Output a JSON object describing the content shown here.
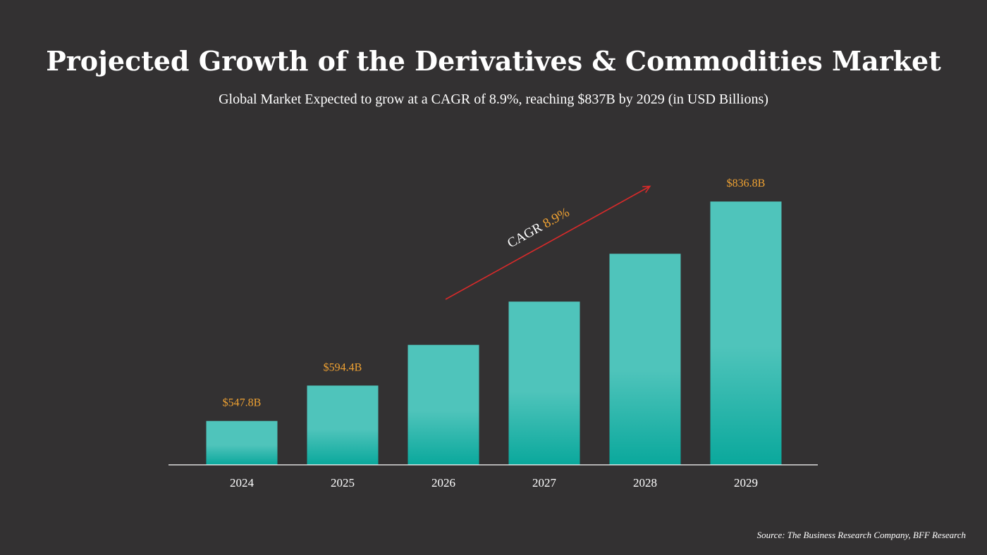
{
  "title": "Projected Growth of the Derivatives & Commodities Market",
  "subtitle": "Global Market Expected to grow at a CAGR of 8.9%, reaching $837B by 2029 (in USD Billions)",
  "source": "Source: The Business Research Company, BFF Research",
  "colors": {
    "background": "#333132",
    "bar_top": "#4fc4bb",
    "bar_bottom": "#0aa89c",
    "value_label": "#f0a232",
    "arrow": "#d82a2a",
    "text": "#ffffff"
  },
  "chart_data": {
    "type": "bar",
    "categories": [
      "2024",
      "2025",
      "2026",
      "2027",
      "2028",
      "2029"
    ],
    "values": [
      547.8,
      594.4,
      648.0,
      705.0,
      768.0,
      836.8
    ],
    "data_labels": [
      "$547.8B",
      "$594.4B",
      "",
      "",
      "",
      "$836.8B"
    ],
    "ylim": [
      490,
      900
    ],
    "annotation": {
      "prefix": "CAGR ",
      "value": "8.9%"
    }
  }
}
